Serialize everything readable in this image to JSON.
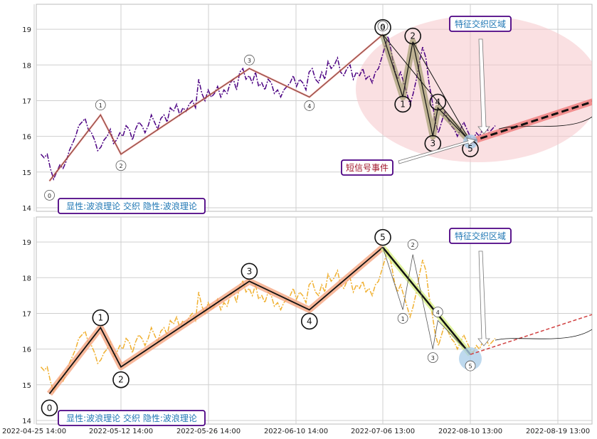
{
  "chart_data": [
    {
      "type": "line",
      "panel": "top",
      "ylim": [
        13.9,
        19.7
      ],
      "y_ticks": [
        14,
        15,
        16,
        17,
        18,
        19
      ],
      "x_tick_labels": [
        "2022-04-25 14:00",
        "2022-05-12 14:00",
        "2022-05-26 14:00",
        "2022-06-10 14:00",
        "2022-07-06 13:00",
        "2022-08-10 13:00",
        "2022-08-19 13:00"
      ],
      "grid": true,
      "price_color": "#4b0082",
      "price_series": [
        15.5,
        15.4,
        15.5,
        15.1,
        14.8,
        15.0,
        15.2,
        15.1,
        15.3,
        15.6,
        15.8,
        16.0,
        16.3,
        16.4,
        16.5,
        16.2,
        16.1,
        15.9,
        15.6,
        15.7,
        15.9,
        16.0,
        16.2,
        15.8,
        15.9,
        16.1,
        16.0,
        16.3,
        16.2,
        15.9,
        16.2,
        16.4,
        16.3,
        16.1,
        16.3,
        16.6,
        16.4,
        16.2,
        16.5,
        16.6,
        16.4,
        16.8,
        16.7,
        16.9,
        16.6,
        16.8,
        16.7,
        16.9,
        17.0,
        16.8,
        17.6,
        17.2,
        17.0,
        17.3,
        17.1,
        17.2,
        17.4,
        17.1,
        17.3,
        17.2,
        17.5,
        17.6,
        17.3,
        17.8,
        17.9,
        17.6,
        17.7,
        17.5,
        17.8,
        17.4,
        17.5,
        17.3,
        17.6,
        17.5,
        17.2,
        17.3,
        17.1,
        17.3,
        17.4,
        17.5,
        17.7,
        17.4,
        17.6,
        17.5,
        17.3,
        17.8,
        17.9,
        17.6,
        17.5,
        17.8,
        17.6,
        18.1,
        17.9,
        18.0,
        18.2,
        17.8,
        17.7,
        17.9,
        18.0,
        17.6,
        17.8,
        17.7,
        17.9,
        17.6,
        17.7,
        17.5,
        17.8,
        17.9,
        18.2,
        18.5,
        18.8,
        18.4,
        17.9,
        17.6,
        17.8,
        17.5,
        17.2,
        16.9,
        17.2,
        17.6,
        18.1,
        18.5,
        18.2,
        17.5,
        17.0,
        16.4,
        16.1,
        16.4,
        16.7,
        16.5,
        16.3,
        16.2,
        16.0,
        16.2,
        16.4,
        16.2,
        16.0,
        15.9,
        16.1,
        16.0,
        16.2,
        16.3,
        16.1,
        16.2,
        16.3
      ],
      "wave_points": [
        {
          "label": "0",
          "date": "2022-04-28",
          "value": 14.75
        },
        {
          "label": "1",
          "date": "2022-05-08",
          "value": 16.6
        },
        {
          "label": "2",
          "date": "2022-05-12",
          "value": 15.5
        },
        {
          "label": "3",
          "date": "2022-06-02",
          "value": 17.9
        },
        {
          "label": "4",
          "date": "2022-06-14",
          "value": 17.1
        },
        {
          "label": "5",
          "date": "2022-07-06",
          "value": 18.85
        }
      ],
      "sub_wave_points": [
        {
          "label": "0",
          "date": "2022-07-06",
          "value": 18.85
        },
        {
          "label": "1",
          "date": "2022-07-14",
          "value": 17.1
        },
        {
          "label": "2",
          "date": "2022-07-18",
          "value": 18.65
        },
        {
          "label": "3",
          "date": "2022-07-26",
          "value": 16.0
        },
        {
          "label": "4",
          "date": "2022-07-28",
          "value": 16.8
        },
        {
          "label": "5",
          "date": "2022-08-10",
          "value": 15.85
        }
      ],
      "projection": {
        "from": {
          "date": "2022-08-10",
          "value": 15.85
        },
        "to": {
          "date": "2022-08-24",
          "value": 17.1
        }
      },
      "annotations": {
        "zone": "特征交织区域",
        "signal": "短信号事件",
        "caption": "显性:波浪理论 交织 隐性:波浪理论"
      },
      "colors": {
        "zone_fill": "#f5c6cb",
        "zone_text": "#1f77b4",
        "signal_text": "#a0152a",
        "box_border": "#4b0082",
        "main_wave": "#e06666",
        "sub_wave_fill": "#8a8a50",
        "sub_wave_line": "#111111",
        "projection_glow": "#f08080"
      }
    },
    {
      "type": "line",
      "panel": "bottom",
      "ylim": [
        13.9,
        19.7
      ],
      "y_ticks": [
        14,
        15,
        16,
        17,
        18,
        19
      ],
      "x_tick_labels": [
        "2022-04-25 14:00",
        "2022-05-12 14:00",
        "2022-05-26 14:00",
        "2022-06-10 14:00",
        "2022-07-06 13:00",
        "2022-08-10 13:00",
        "2022-08-19 13:00"
      ],
      "grid": true,
      "price_color": "#f0b030",
      "price_series": [
        15.5,
        15.4,
        15.5,
        15.1,
        14.8,
        15.0,
        15.2,
        15.1,
        15.3,
        15.6,
        15.8,
        16.0,
        16.3,
        16.4,
        16.5,
        16.2,
        16.1,
        15.9,
        15.6,
        15.7,
        15.9,
        16.0,
        16.2,
        15.8,
        15.9,
        16.1,
        16.0,
        16.3,
        16.2,
        15.9,
        16.2,
        16.4,
        16.3,
        16.1,
        16.3,
        16.6,
        16.4,
        16.2,
        16.5,
        16.6,
        16.4,
        16.8,
        16.7,
        16.9,
        16.6,
        16.8,
        16.7,
        16.9,
        17.0,
        16.8,
        17.6,
        17.2,
        17.0,
        17.3,
        17.1,
        17.2,
        17.4,
        17.1,
        17.3,
        17.2,
        17.5,
        17.6,
        17.3,
        17.8,
        17.9,
        17.6,
        17.7,
        17.5,
        17.8,
        17.4,
        17.5,
        17.3,
        17.6,
        17.5,
        17.2,
        17.3,
        17.1,
        17.3,
        17.4,
        17.5,
        17.7,
        17.4,
        17.6,
        17.5,
        17.3,
        17.8,
        17.9,
        17.6,
        17.5,
        17.8,
        17.6,
        18.1,
        17.9,
        18.0,
        18.2,
        17.8,
        17.7,
        17.9,
        18.0,
        17.6,
        17.8,
        17.7,
        17.9,
        17.6,
        17.7,
        17.5,
        17.8,
        17.9,
        18.2,
        18.5,
        18.8,
        18.4,
        17.9,
        17.6,
        17.8,
        17.5,
        17.2,
        16.9,
        17.2,
        17.6,
        18.1,
        18.5,
        18.2,
        17.5,
        17.0,
        16.4,
        16.1,
        16.4,
        16.7,
        16.5,
        16.3,
        16.2,
        16.0,
        16.2,
        16.4,
        16.2,
        16.0,
        15.9,
        16.1,
        16.0,
        16.2,
        16.3,
        16.1,
        16.2,
        16.3
      ],
      "wave_points": [
        {
          "label": "0",
          "date": "2022-04-28",
          "value": 14.75
        },
        {
          "label": "1",
          "date": "2022-05-08",
          "value": 16.6
        },
        {
          "label": "2",
          "date": "2022-05-12",
          "value": 15.5
        },
        {
          "label": "3",
          "date": "2022-06-02",
          "value": 17.9
        },
        {
          "label": "4",
          "date": "2022-06-14",
          "value": 17.1
        },
        {
          "label": "5",
          "date": "2022-07-06",
          "value": 18.85
        }
      ],
      "sub_wave_points": [
        {
          "label": "0",
          "date": "2022-07-06",
          "value": 18.85
        },
        {
          "label": "1",
          "date": "2022-07-14",
          "value": 17.1
        },
        {
          "label": "2",
          "date": "2022-07-18",
          "value": 18.65
        },
        {
          "label": "3",
          "date": "2022-07-26",
          "value": 16.0
        },
        {
          "label": "4",
          "date": "2022-07-28",
          "value": 16.8
        },
        {
          "label": "5",
          "date": "2022-08-10",
          "value": 15.85
        }
      ],
      "projection": {
        "from": {
          "date": "2022-08-10",
          "value": 15.85
        },
        "to": {
          "date": "2022-08-24",
          "value": 17.1
        }
      },
      "annotations": {
        "zone": "特征交织区域",
        "caption": "显性:波浪理论 交织 隐性:波浪理论"
      },
      "colors": {
        "zone_text": "#1f77b4",
        "box_border": "#4b0082",
        "main_wave_glow": "#f4a07a",
        "down_wave_glow": "#d8f08a",
        "end_glow": "#a8cce8",
        "projection": "#d04040"
      }
    }
  ]
}
